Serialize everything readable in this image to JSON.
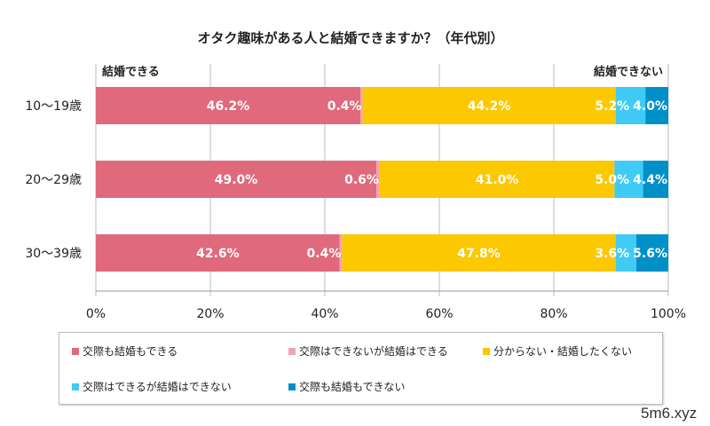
{
  "chart_data": {
    "type": "bar",
    "orientation": "horizontal",
    "stacked": "percent",
    "title": "オタク趣味がある人と結婚できますか？（年代別）",
    "annotations": {
      "left": "結婚できる",
      "right": "結婚できない"
    },
    "categories": [
      "10〜19歳",
      "20〜29歳",
      "30〜39歳"
    ],
    "series": [
      {
        "name": "交際も結婚もできる",
        "color": "#e0697c",
        "values": [
          46.2,
          49.0,
          42.6
        ]
      },
      {
        "name": "交際はできないが結婚はできる",
        "color": "#f2a4b0",
        "values": [
          0.4,
          0.6,
          0.4
        ]
      },
      {
        "name": "分からない・結婚したくない",
        "color": "#fcc800",
        "values": [
          44.2,
          41.0,
          47.8
        ]
      },
      {
        "name": "交際はできるが結婚はできない",
        "color": "#40cbf5",
        "values": [
          5.2,
          5.0,
          3.6
        ]
      },
      {
        "name": "交際も結婚もできない",
        "color": "#0090c8",
        "values": [
          4.0,
          4.4,
          5.6
        ]
      }
    ],
    "xlim": [
      0,
      100
    ],
    "xticks": [
      "0%",
      "20%",
      "40%",
      "60%",
      "80%",
      "100%"
    ],
    "grid": true,
    "legend_placement": "bottom"
  },
  "watermark": "5m6.xyz"
}
